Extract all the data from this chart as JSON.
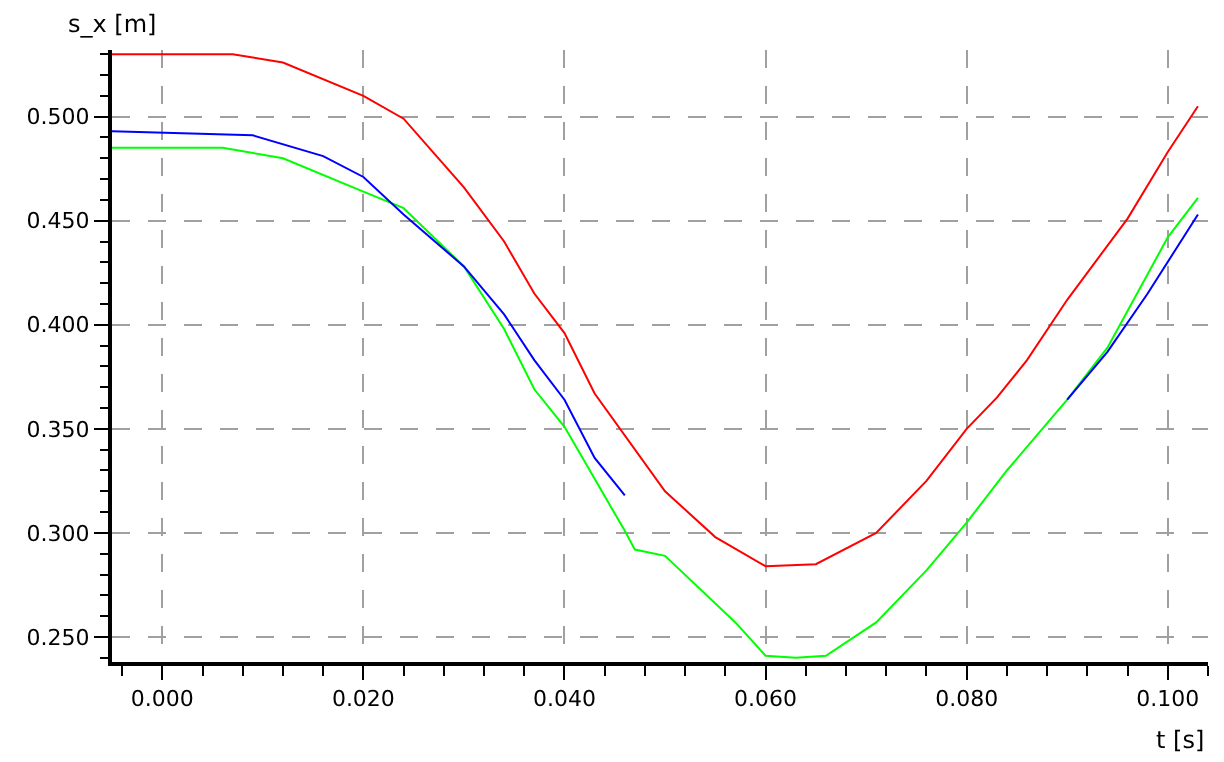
{
  "chart_data": {
    "type": "line",
    "xlabel": "t [s]",
    "ylabel": "s_x [m]",
    "xlim": [
      -0.005,
      0.104
    ],
    "ylim": [
      0.238,
      0.532
    ],
    "xticks": [
      {
        "value": 0,
        "label": "0.000"
      },
      {
        "value": 0.02,
        "label": "0.020"
      },
      {
        "value": 0.04,
        "label": "0.040"
      },
      {
        "value": 0.06,
        "label": "0.060"
      },
      {
        "value": 0.08,
        "label": "0.080"
      },
      {
        "value": 0.1,
        "label": "0.100"
      }
    ],
    "yticks": [
      {
        "value": 0.25,
        "label": "0.250"
      },
      {
        "value": 0.3,
        "label": "0.300"
      },
      {
        "value": 0.35,
        "label": "0.350"
      },
      {
        "value": 0.4,
        "label": "0.400"
      },
      {
        "value": 0.45,
        "label": "0.450"
      },
      {
        "value": 0.5,
        "label": "0.500"
      }
    ],
    "grid": true,
    "line_style": "solid",
    "marker": "none",
    "series": [
      {
        "color": "#ff0000",
        "x": [
          -0.005,
          0.007,
          0.012,
          0.02,
          0.024,
          0.03,
          0.034,
          0.037,
          0.04,
          0.043,
          0.05,
          0.055,
          0.06,
          0.065,
          0.071,
          0.076,
          0.08,
          0.083,
          0.086,
          0.09,
          0.096,
          0.1,
          0.103
        ],
        "values": [
          0.53,
          0.53,
          0.526,
          0.51,
          0.499,
          0.466,
          0.44,
          0.415,
          0.396,
          0.367,
          0.32,
          0.298,
          0.284,
          0.285,
          0.3,
          0.325,
          0.35,
          0.365,
          0.383,
          0.412,
          0.451,
          0.483,
          0.505
        ]
      },
      {
        "color": "#0000ff",
        "x": [
          -0.005,
          0.009,
          0.016,
          0.02,
          0.024,
          0.03,
          0.034,
          0.037,
          0.04,
          0.043,
          0.046,
          0.089,
          0.09,
          0.094,
          0.098,
          0.103
        ],
        "values": [
          0.493,
          0.491,
          0.481,
          0.471,
          0.453,
          0.428,
          0.405,
          0.383,
          0.364,
          0.336,
          0.318,
          null,
          0.364,
          0.387,
          0.415,
          0.453
        ]
      },
      {
        "color": "#00ff00",
        "x": [
          -0.005,
          0.006,
          0.012,
          0.02,
          0.024,
          0.03,
          0.034,
          0.037,
          0.04,
          0.043,
          0.046,
          0.047,
          0.05,
          0.057,
          0.06,
          0.063,
          0.066,
          0.071,
          0.076,
          0.08,
          0.084,
          0.09,
          0.094,
          0.1,
          0.103
        ],
        "values": [
          0.485,
          0.485,
          0.48,
          0.464,
          0.456,
          0.428,
          0.398,
          0.369,
          0.351,
          0.326,
          0.301,
          0.292,
          0.289,
          0.257,
          0.241,
          0.24,
          0.241,
          0.257,
          0.282,
          0.305,
          0.33,
          0.364,
          0.389,
          0.442,
          0.461
        ]
      }
    ]
  }
}
